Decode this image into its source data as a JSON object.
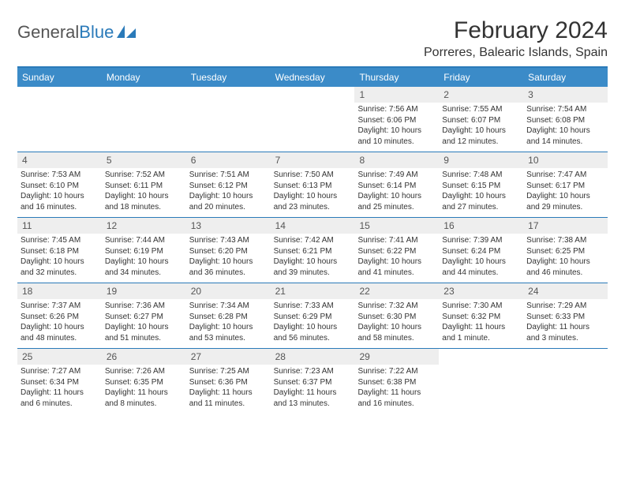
{
  "logo": {
    "text1": "General",
    "text2": "Blue"
  },
  "title": "February 2024",
  "location": "Porreres, Balearic Islands, Spain",
  "colors": {
    "header_bg": "#3b8bc8",
    "header_border": "#2a7ab9",
    "daynum_bg": "#eeeeee",
    "text": "#333333"
  },
  "typography": {
    "title_fontsize": 30,
    "location_fontsize": 16,
    "dow_fontsize": 12,
    "daynum_fontsize": 12,
    "body_fontsize": 10
  },
  "days_of_week": [
    "Sunday",
    "Monday",
    "Tuesday",
    "Wednesday",
    "Thursday",
    "Friday",
    "Saturday"
  ],
  "weeks": [
    [
      {
        "n": "",
        "empty": true
      },
      {
        "n": "",
        "empty": true
      },
      {
        "n": "",
        "empty": true
      },
      {
        "n": "",
        "empty": true
      },
      {
        "n": "1",
        "sr": "7:56 AM",
        "ss": "6:06 PM",
        "dl": "10 hours and 10 minutes."
      },
      {
        "n": "2",
        "sr": "7:55 AM",
        "ss": "6:07 PM",
        "dl": "10 hours and 12 minutes."
      },
      {
        "n": "3",
        "sr": "7:54 AM",
        "ss": "6:08 PM",
        "dl": "10 hours and 14 minutes."
      }
    ],
    [
      {
        "n": "4",
        "sr": "7:53 AM",
        "ss": "6:10 PM",
        "dl": "10 hours and 16 minutes."
      },
      {
        "n": "5",
        "sr": "7:52 AM",
        "ss": "6:11 PM",
        "dl": "10 hours and 18 minutes."
      },
      {
        "n": "6",
        "sr": "7:51 AM",
        "ss": "6:12 PM",
        "dl": "10 hours and 20 minutes."
      },
      {
        "n": "7",
        "sr": "7:50 AM",
        "ss": "6:13 PM",
        "dl": "10 hours and 23 minutes."
      },
      {
        "n": "8",
        "sr": "7:49 AM",
        "ss": "6:14 PM",
        "dl": "10 hours and 25 minutes."
      },
      {
        "n": "9",
        "sr": "7:48 AM",
        "ss": "6:15 PM",
        "dl": "10 hours and 27 minutes."
      },
      {
        "n": "10",
        "sr": "7:47 AM",
        "ss": "6:17 PM",
        "dl": "10 hours and 29 minutes."
      }
    ],
    [
      {
        "n": "11",
        "sr": "7:45 AM",
        "ss": "6:18 PM",
        "dl": "10 hours and 32 minutes."
      },
      {
        "n": "12",
        "sr": "7:44 AM",
        "ss": "6:19 PM",
        "dl": "10 hours and 34 minutes."
      },
      {
        "n": "13",
        "sr": "7:43 AM",
        "ss": "6:20 PM",
        "dl": "10 hours and 36 minutes."
      },
      {
        "n": "14",
        "sr": "7:42 AM",
        "ss": "6:21 PM",
        "dl": "10 hours and 39 minutes."
      },
      {
        "n": "15",
        "sr": "7:41 AM",
        "ss": "6:22 PM",
        "dl": "10 hours and 41 minutes."
      },
      {
        "n": "16",
        "sr": "7:39 AM",
        "ss": "6:24 PM",
        "dl": "10 hours and 44 minutes."
      },
      {
        "n": "17",
        "sr": "7:38 AM",
        "ss": "6:25 PM",
        "dl": "10 hours and 46 minutes."
      }
    ],
    [
      {
        "n": "18",
        "sr": "7:37 AM",
        "ss": "6:26 PM",
        "dl": "10 hours and 48 minutes."
      },
      {
        "n": "19",
        "sr": "7:36 AM",
        "ss": "6:27 PM",
        "dl": "10 hours and 51 minutes."
      },
      {
        "n": "20",
        "sr": "7:34 AM",
        "ss": "6:28 PM",
        "dl": "10 hours and 53 minutes."
      },
      {
        "n": "21",
        "sr": "7:33 AM",
        "ss": "6:29 PM",
        "dl": "10 hours and 56 minutes."
      },
      {
        "n": "22",
        "sr": "7:32 AM",
        "ss": "6:30 PM",
        "dl": "10 hours and 58 minutes."
      },
      {
        "n": "23",
        "sr": "7:30 AM",
        "ss": "6:32 PM",
        "dl": "11 hours and 1 minute."
      },
      {
        "n": "24",
        "sr": "7:29 AM",
        "ss": "6:33 PM",
        "dl": "11 hours and 3 minutes."
      }
    ],
    [
      {
        "n": "25",
        "sr": "7:27 AM",
        "ss": "6:34 PM",
        "dl": "11 hours and 6 minutes."
      },
      {
        "n": "26",
        "sr": "7:26 AM",
        "ss": "6:35 PM",
        "dl": "11 hours and 8 minutes."
      },
      {
        "n": "27",
        "sr": "7:25 AM",
        "ss": "6:36 PM",
        "dl": "11 hours and 11 minutes."
      },
      {
        "n": "28",
        "sr": "7:23 AM",
        "ss": "6:37 PM",
        "dl": "11 hours and 13 minutes."
      },
      {
        "n": "29",
        "sr": "7:22 AM",
        "ss": "6:38 PM",
        "dl": "11 hours and 16 minutes."
      },
      {
        "n": "",
        "empty": true
      },
      {
        "n": "",
        "empty": true
      }
    ]
  ],
  "labels": {
    "sunrise": "Sunrise:",
    "sunset": "Sunset:",
    "daylight": "Daylight:"
  }
}
